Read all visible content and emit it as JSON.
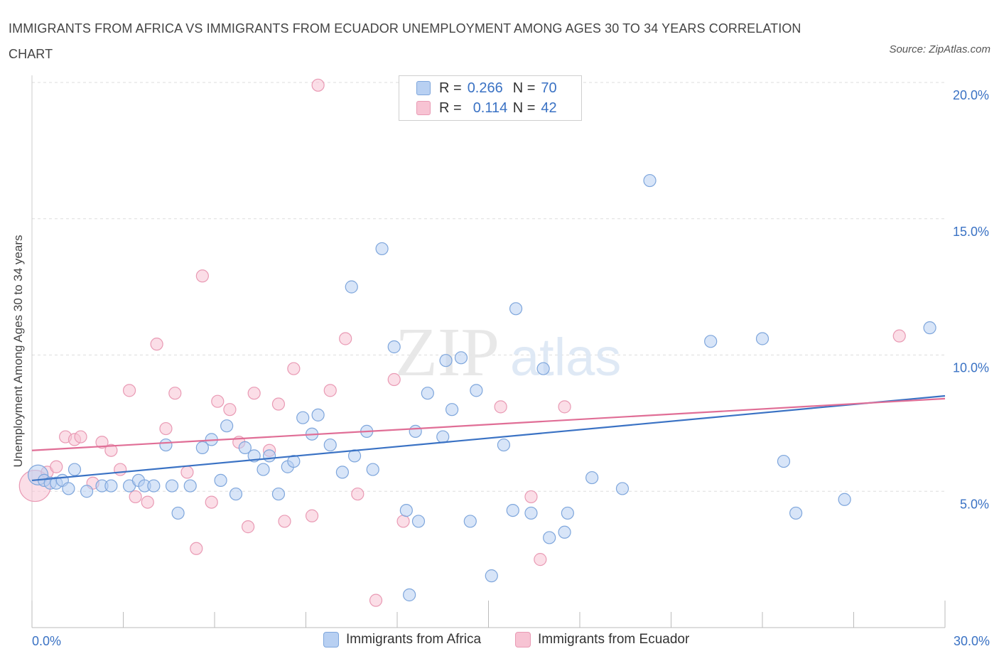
{
  "title": "IMMIGRANTS FROM AFRICA VS IMMIGRANTS FROM ECUADOR UNEMPLOYMENT AMONG AGES 30 TO 34 YEARS CORRELATION CHART",
  "source": "Source: ZipAtlas.com",
  "watermark": {
    "zip": "ZIP",
    "atlas": "atlas"
  },
  "legend": {
    "rows": [
      {
        "r_label": "R =",
        "r_value": "0.266",
        "n_label": "N =",
        "n_value": "70"
      },
      {
        "r_label": "R =",
        "r_value": "0.114",
        "n_label": "N =",
        "n_value": "42"
      }
    ]
  },
  "colors": {
    "africa_fill": "#b8d0f2",
    "africa_stroke": "#7ea6dc",
    "africa_line": "#3a72c4",
    "ecuador_fill": "#f7c3d3",
    "ecuador_stroke": "#e99ab4",
    "ecuador_line": "#e06e96",
    "tick_label": "#3a72c4",
    "grid": "#dddddd"
  },
  "chart_data": {
    "type": "scatter",
    "title": "IMMIGRANTS FROM AFRICA VS IMMIGRANTS FROM ECUADOR UNEMPLOYMENT AMONG AGES 30 TO 34 YEARS CORRELATION CHART",
    "xlabel": "",
    "ylabel": "Unemployment Among Ages 30 to 34 years",
    "xlim": [
      0,
      30
    ],
    "ylim": [
      0,
      20
    ],
    "x_tick_labels": [
      "0.0%",
      "30.0%"
    ],
    "y_ticks": [
      5,
      10,
      15,
      20
    ],
    "y_tick_labels": [
      "5.0%",
      "10.0%",
      "15.0%",
      "20.0%"
    ],
    "grid": "horizontal dashed",
    "legend_position": "top-center and bottom",
    "series": [
      {
        "name": "Immigrants from Africa",
        "trend": [
          [
            0,
            5.4
          ],
          [
            30,
            8.5
          ]
        ],
        "points": [
          [
            0.2,
            5.6
          ],
          [
            0.4,
            5.4
          ],
          [
            0.6,
            5.3
          ],
          [
            0.8,
            5.3
          ],
          [
            1.0,
            5.4
          ],
          [
            1.2,
            5.1
          ],
          [
            1.8,
            5.0
          ],
          [
            1.4,
            5.8
          ],
          [
            2.3,
            5.2
          ],
          [
            2.6,
            5.2
          ],
          [
            3.2,
            5.2
          ],
          [
            3.5,
            5.4
          ],
          [
            3.7,
            5.2
          ],
          [
            4.0,
            5.2
          ],
          [
            4.4,
            6.7
          ],
          [
            4.6,
            5.2
          ],
          [
            4.8,
            4.2
          ],
          [
            5.2,
            5.2
          ],
          [
            5.6,
            6.6
          ],
          [
            5.9,
            6.9
          ],
          [
            6.2,
            5.4
          ],
          [
            6.4,
            7.4
          ],
          [
            6.7,
            4.9
          ],
          [
            7.0,
            6.6
          ],
          [
            7.3,
            6.3
          ],
          [
            7.6,
            5.8
          ],
          [
            7.8,
            6.3
          ],
          [
            8.1,
            4.9
          ],
          [
            8.4,
            5.9
          ],
          [
            8.6,
            6.1
          ],
          [
            8.9,
            7.7
          ],
          [
            9.2,
            7.1
          ],
          [
            9.4,
            7.8
          ],
          [
            9.8,
            6.7
          ],
          [
            10.2,
            5.7
          ],
          [
            10.5,
            12.5
          ],
          [
            10.6,
            6.3
          ],
          [
            11.0,
            7.2
          ],
          [
            11.2,
            5.8
          ],
          [
            11.5,
            13.9
          ],
          [
            11.9,
            10.3
          ],
          [
            12.3,
            4.3
          ],
          [
            12.6,
            7.2
          ],
          [
            12.7,
            3.9
          ],
          [
            13.0,
            8.6
          ],
          [
            13.5,
            7.0
          ],
          [
            13.8,
            8.0
          ],
          [
            14.1,
            9.9
          ],
          [
            14.4,
            3.9
          ],
          [
            14.6,
            8.7
          ],
          [
            15.1,
            1.9
          ],
          [
            15.5,
            6.7
          ],
          [
            15.8,
            4.3
          ],
          [
            15.9,
            11.7
          ],
          [
            16.4,
            4.2
          ],
          [
            16.8,
            9.5
          ],
          [
            17.0,
            3.3
          ],
          [
            17.6,
            4.2
          ],
          [
            17.5,
            3.5
          ],
          [
            18.4,
            5.5
          ],
          [
            19.4,
            5.1
          ],
          [
            20.3,
            16.4
          ],
          [
            22.3,
            10.5
          ],
          [
            24.0,
            10.6
          ],
          [
            24.7,
            6.1
          ],
          [
            25.1,
            4.2
          ],
          [
            26.7,
            4.7
          ],
          [
            29.5,
            11.0
          ],
          [
            12.4,
            1.2
          ],
          [
            13.6,
            9.8
          ]
        ]
      },
      {
        "name": "Immigrants from Ecuador",
        "trend": [
          [
            0,
            6.5
          ],
          [
            30,
            8.4
          ]
        ],
        "points": [
          [
            0.1,
            5.2
          ],
          [
            0.5,
            5.7
          ],
          [
            0.8,
            5.9
          ],
          [
            1.1,
            7.0
          ],
          [
            1.4,
            6.9
          ],
          [
            1.6,
            7.0
          ],
          [
            2.0,
            5.3
          ],
          [
            2.3,
            6.8
          ],
          [
            2.6,
            6.5
          ],
          [
            2.9,
            5.8
          ],
          [
            3.2,
            8.7
          ],
          [
            3.4,
            4.8
          ],
          [
            3.8,
            4.6
          ],
          [
            4.1,
            10.4
          ],
          [
            4.4,
            7.3
          ],
          [
            4.7,
            8.6
          ],
          [
            5.1,
            5.7
          ],
          [
            5.4,
            2.9
          ],
          [
            5.6,
            12.9
          ],
          [
            5.9,
            4.6
          ],
          [
            6.1,
            8.3
          ],
          [
            6.5,
            8.0
          ],
          [
            6.8,
            6.8
          ],
          [
            7.1,
            3.7
          ],
          [
            7.3,
            8.6
          ],
          [
            7.8,
            6.5
          ],
          [
            8.1,
            8.2
          ],
          [
            8.3,
            3.9
          ],
          [
            8.6,
            9.5
          ],
          [
            9.2,
            4.1
          ],
          [
            9.4,
            19.9
          ],
          [
            9.8,
            8.7
          ],
          [
            10.3,
            10.6
          ],
          [
            10.7,
            4.9
          ],
          [
            11.3,
            1.0
          ],
          [
            11.9,
            9.1
          ],
          [
            12.2,
            3.9
          ],
          [
            15.4,
            8.1
          ],
          [
            16.4,
            4.8
          ],
          [
            16.7,
            2.5
          ],
          [
            17.5,
            8.1
          ],
          [
            28.5,
            10.7
          ]
        ]
      }
    ]
  },
  "bottom_legend": [
    "Immigrants from Africa",
    "Immigrants from Ecuador"
  ]
}
